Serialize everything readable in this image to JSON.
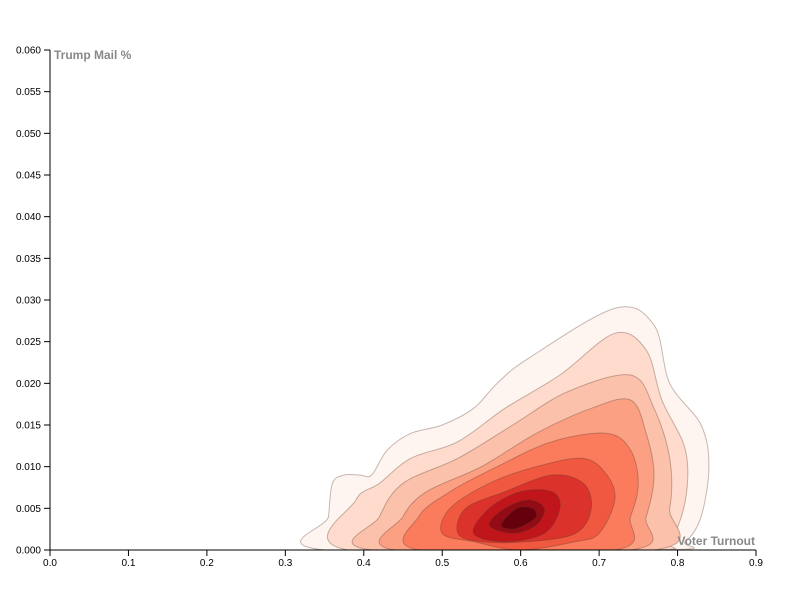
{
  "chart_data": {
    "type": "contour-density",
    "xlabel": "Voter Turnout",
    "ylabel": "Trump Mail %",
    "xlim": [
      0,
      0.9
    ],
    "ylim": [
      0,
      0.06
    ],
    "x_ticks": [
      "0.0",
      "0.1",
      "0.2",
      "0.3",
      "0.4",
      "0.5",
      "0.6",
      "0.7",
      "0.8",
      "0.9"
    ],
    "y_ticks": [
      "0.000",
      "0.005",
      "0.010",
      "0.015",
      "0.020",
      "0.025",
      "0.030",
      "0.035",
      "0.040",
      "0.045",
      "0.050",
      "0.055",
      "0.060"
    ],
    "grid": false,
    "color_scale": [
      "#fff5f0",
      "#fcbba1",
      "#fb6a4a",
      "#cb181d",
      "#67000d"
    ],
    "contour_stroke": "#5a3a2a",
    "density": {
      "peak": {
        "x": 0.6,
        "y": 0.004
      },
      "outer_extent": {
        "x": [
          0.35,
          0.84
        ],
        "y": [
          0.0,
          0.029
        ]
      },
      "levels": [
        [
          [
            0.35,
            0.0
          ],
          [
            0.355,
            0.004
          ],
          [
            0.36,
            0.008
          ],
          [
            0.375,
            0.009
          ],
          [
            0.395,
            0.009
          ],
          [
            0.41,
            0.009
          ],
          [
            0.43,
            0.012
          ],
          [
            0.46,
            0.014
          ],
          [
            0.5,
            0.015
          ],
          [
            0.54,
            0.017
          ],
          [
            0.57,
            0.02
          ],
          [
            0.61,
            0.023
          ],
          [
            0.72,
            0.029
          ],
          [
            0.77,
            0.027
          ],
          [
            0.79,
            0.02
          ],
          [
            0.83,
            0.015
          ],
          [
            0.84,
            0.01
          ],
          [
            0.83,
            0.004
          ],
          [
            0.81,
            0.001
          ],
          [
            0.78,
            0.0
          ]
        ],
        [
          [
            0.38,
            0.0
          ],
          [
            0.39,
            0.006
          ],
          [
            0.42,
            0.008
          ],
          [
            0.46,
            0.011
          ],
          [
            0.52,
            0.013
          ],
          [
            0.58,
            0.017
          ],
          [
            0.65,
            0.021
          ],
          [
            0.72,
            0.026
          ],
          [
            0.76,
            0.024
          ],
          [
            0.78,
            0.018
          ],
          [
            0.81,
            0.012
          ],
          [
            0.81,
            0.006
          ],
          [
            0.79,
            0.001
          ],
          [
            0.76,
            0.0
          ]
        ],
        [
          [
            0.41,
            0.0
          ],
          [
            0.42,
            0.004
          ],
          [
            0.45,
            0.008
          ],
          [
            0.52,
            0.011
          ],
          [
            0.59,
            0.015
          ],
          [
            0.66,
            0.019
          ],
          [
            0.74,
            0.021
          ],
          [
            0.77,
            0.017
          ],
          [
            0.79,
            0.011
          ],
          [
            0.79,
            0.005
          ],
          [
            0.77,
            0.0
          ]
        ],
        [
          [
            0.44,
            0.0
          ],
          [
            0.45,
            0.004
          ],
          [
            0.48,
            0.007
          ],
          [
            0.55,
            0.01
          ],
          [
            0.62,
            0.014
          ],
          [
            0.69,
            0.017
          ],
          [
            0.74,
            0.018
          ],
          [
            0.76,
            0.014
          ],
          [
            0.77,
            0.009
          ],
          [
            0.76,
            0.004
          ],
          [
            0.74,
            0.0
          ]
        ],
        [
          [
            0.47,
            0.0
          ],
          [
            0.47,
            0.004
          ],
          [
            0.51,
            0.007
          ],
          [
            0.57,
            0.01
          ],
          [
            0.64,
            0.013
          ],
          [
            0.71,
            0.014
          ],
          [
            0.74,
            0.012
          ],
          [
            0.75,
            0.008
          ],
          [
            0.74,
            0.004
          ],
          [
            0.72,
            0.0
          ]
        ],
        [
          [
            0.5,
            0.002
          ],
          [
            0.51,
            0.005
          ],
          [
            0.56,
            0.008
          ],
          [
            0.62,
            0.01
          ],
          [
            0.68,
            0.011
          ],
          [
            0.71,
            0.009
          ],
          [
            0.72,
            0.006
          ],
          [
            0.7,
            0.002
          ],
          [
            0.67,
            0.001
          ],
          [
            0.6,
            0.0
          ],
          [
            0.54,
            0.001
          ]
        ],
        [
          [
            0.52,
            0.002
          ],
          [
            0.53,
            0.005
          ],
          [
            0.58,
            0.007
          ],
          [
            0.64,
            0.009
          ],
          [
            0.68,
            0.008
          ],
          [
            0.69,
            0.005
          ],
          [
            0.67,
            0.002
          ],
          [
            0.61,
            0.001
          ],
          [
            0.55,
            0.001
          ]
        ],
        [
          [
            0.54,
            0.002
          ],
          [
            0.56,
            0.005
          ],
          [
            0.6,
            0.007
          ],
          [
            0.64,
            0.007
          ],
          [
            0.65,
            0.005
          ],
          [
            0.63,
            0.002
          ],
          [
            0.58,
            0.001
          ]
        ],
        [
          [
            0.56,
            0.003
          ],
          [
            0.58,
            0.005
          ],
          [
            0.61,
            0.006
          ],
          [
            0.63,
            0.005
          ],
          [
            0.62,
            0.003
          ],
          [
            0.59,
            0.002
          ]
        ],
        [
          [
            0.575,
            0.003
          ],
          [
            0.595,
            0.005
          ],
          [
            0.615,
            0.005
          ],
          [
            0.62,
            0.004
          ],
          [
            0.605,
            0.003
          ],
          [
            0.59,
            0.0025
          ]
        ]
      ]
    }
  }
}
